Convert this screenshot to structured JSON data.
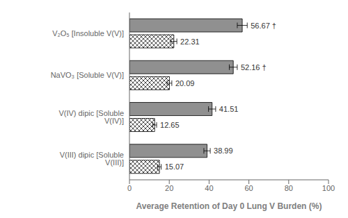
{
  "chart_data": {
    "type": "bar",
    "orientation": "horizontal",
    "categories": [
      "V₂O₅ [Insoluble V(V)]",
      "NaVO₃ [Soluble V(V)]",
      "V(IV) dipic [Soluble V(IV)]",
      "V(III) dipic [Soluble V(III)]"
    ],
    "series": [
      {
        "color": "#909090",
        "values": [
          56.67,
          52.16,
          41.51,
          38.99
        ],
        "errors": [
          2.5,
          2.0,
          1.8,
          1.6
        ],
        "value_labels": [
          "56.67 †",
          "52.16 †",
          "41.51",
          "38.99"
        ]
      },
      {
        "color": "#ffffff",
        "values": [
          22.31,
          20.09,
          12.65,
          15.07
        ],
        "errors": [
          1.5,
          1.2,
          1.0,
          0.9
        ]
      }
    ],
    "xlabel": "Average Retention of Day 0 Lung V Burden (%)",
    "xlim": [
      0,
      100
    ],
    "xticks": [
      0,
      20,
      40,
      60,
      80,
      100
    ],
    "data_labels": true,
    "grid": false
  }
}
